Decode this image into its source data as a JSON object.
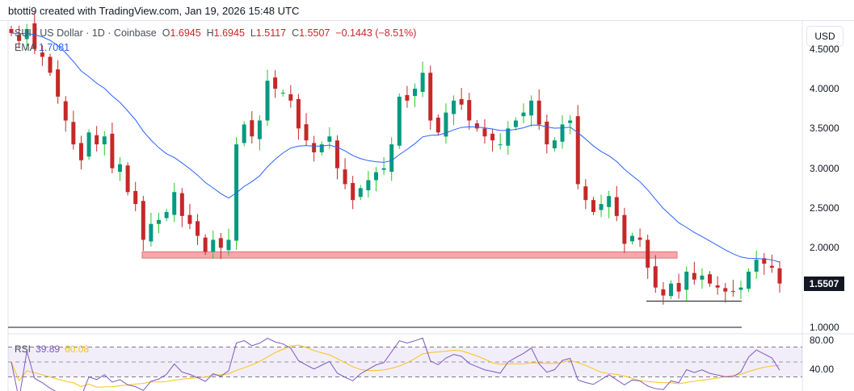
{
  "credit": "btotti9 created with TradingView.com, Jan 19, 2026 15:48 UTC",
  "legend": {
    "symbol": "SUI / US Dollar · 1D · Coinbase",
    "open_label": "O",
    "open": "1.6945",
    "high_label": "H",
    "high": "1.6945",
    "low_label": "L",
    "low": "1.5117",
    "close_label": "C",
    "close": "1.5507",
    "change": "−0.1443 (−8.51%)",
    "ema_label": "EMA",
    "ema_value": "1.7081"
  },
  "rsi_legend": {
    "label": "RSI",
    "rsi": "39.89",
    "rsi_ma": "60.08"
  },
  "currency_button": "USD",
  "colors": {
    "up": "#089981",
    "up_wick": "#22c922",
    "down": "#c62828",
    "ema": "#2962ff",
    "rsi": "#7e57c2",
    "rsi_ma": "#f7c31a",
    "zone": "#f4a7ad"
  },
  "chart_data": {
    "type": "candlestick",
    "price_axis": {
      "ticks": [
        "4.5000",
        "4.0000",
        "3.5000",
        "3.0000",
        "2.5000",
        "2.0000",
        "1.0000"
      ],
      "range": [
        0.97,
        4.8
      ],
      "last_price": "1.5507"
    },
    "rsi_axis": {
      "ticks": [
        "80.00",
        "40.00"
      ],
      "bands": [
        30,
        50,
        70
      ]
    },
    "closes": [
      4.7,
      4.6,
      4.75,
      4.5,
      4.4,
      4.2,
      3.9,
      3.6,
      3.3,
      3.1,
      3.45,
      3.3,
      3.4,
      3.0,
      3.05,
      2.7,
      2.55,
      2.1,
      2.3,
      2.35,
      2.45,
      2.7,
      2.4,
      2.3,
      2.15,
      1.95,
      2.1,
      2.0,
      2.1,
      3.3,
      3.55,
      3.4,
      3.6,
      4.1,
      4.0,
      3.95,
      3.85,
      3.5,
      3.35,
      3.2,
      3.3,
      3.4,
      3.0,
      2.8,
      2.6,
      2.75,
      2.85,
      2.95,
      3.0,
      3.3,
      3.9,
      3.85,
      4.0,
      4.2,
      3.6,
      3.45,
      3.7,
      3.85,
      3.8,
      3.6,
      3.5,
      3.4,
      3.35,
      3.3,
      3.5,
      3.6,
      3.7,
      3.85,
      3.55,
      3.3,
      3.35,
      3.55,
      3.6,
      2.8,
      2.6,
      2.45,
      2.55,
      2.65,
      2.4,
      2.05,
      2.15,
      2.1,
      1.75,
      1.5,
      1.4,
      1.55,
      1.45,
      1.7,
      1.6,
      1.65,
      1.55,
      1.5,
      1.45,
      1.45,
      1.5,
      1.7,
      1.85,
      1.8,
      1.75,
      1.5507
    ],
    "annotations": {
      "support_zone": [
        1.87,
        1.95
      ],
      "range_low_line": 1.33,
      "baseline": 1.0
    }
  }
}
